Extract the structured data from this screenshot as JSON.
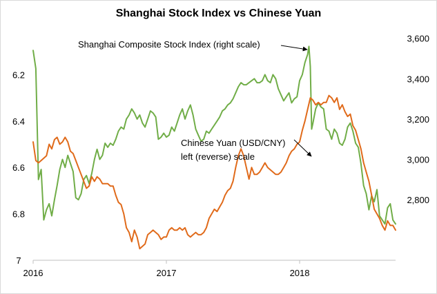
{
  "chart_data": {
    "type": "line",
    "title": "Shanghai Stock Index vs Chinese Yuan",
    "x_tick_labels": [
      "2016",
      "2017",
      "2018"
    ],
    "y_left_tick_labels": [
      "6.2",
      "6.4",
      "6.6",
      "6.8",
      "7"
    ],
    "y_right_tick_labels": [
      "2,800",
      "3,000",
      "3,200",
      "3,400",
      "3,600"
    ],
    "y_left_range": [
      6.0,
      7.0
    ],
    "y_left_reversed": true,
    "y_right_range": [
      2500,
      3650
    ],
    "x_range": [
      2016.0,
      2018.72
    ],
    "grid": false,
    "annotations": [
      {
        "text": "Shanghai Composite Stock Index (right scale)",
        "target": "shanghai"
      },
      {
        "lines": [
          "Chinese Yuan (USD/CNY)",
          "left (reverse) scale"
        ],
        "target": "yuan"
      }
    ],
    "series": [
      {
        "name": "Shanghai Composite Stock Index",
        "axis": "right",
        "color": "#70ad47",
        "points": [
          [
            2016.0,
            3540
          ],
          [
            2016.02,
            3450
          ],
          [
            2016.04,
            2900
          ],
          [
            2016.06,
            2950
          ],
          [
            2016.08,
            2700
          ],
          [
            2016.1,
            2750
          ],
          [
            2016.12,
            2780
          ],
          [
            2016.14,
            2720
          ],
          [
            2016.16,
            2800
          ],
          [
            2016.18,
            2870
          ],
          [
            2016.2,
            2950
          ],
          [
            2016.22,
            3000
          ],
          [
            2016.24,
            2960
          ],
          [
            2016.26,
            3020
          ],
          [
            2016.28,
            2980
          ],
          [
            2016.3,
            2940
          ],
          [
            2016.32,
            2810
          ],
          [
            2016.34,
            2800
          ],
          [
            2016.36,
            2830
          ],
          [
            2016.38,
            2900
          ],
          [
            2016.4,
            2920
          ],
          [
            2016.42,
            2880
          ],
          [
            2016.44,
            2930
          ],
          [
            2016.46,
            3000
          ],
          [
            2016.48,
            3050
          ],
          [
            2016.5,
            3000
          ],
          [
            2016.52,
            3020
          ],
          [
            2016.54,
            3080
          ],
          [
            2016.56,
            3060
          ],
          [
            2016.58,
            3080
          ],
          [
            2016.6,
            3070
          ],
          [
            2016.62,
            3100
          ],
          [
            2016.64,
            3140
          ],
          [
            2016.66,
            3160
          ],
          [
            2016.68,
            3150
          ],
          [
            2016.7,
            3200
          ],
          [
            2016.72,
            3220
          ],
          [
            2016.74,
            3250
          ],
          [
            2016.76,
            3230
          ],
          [
            2016.78,
            3200
          ],
          [
            2016.8,
            3220
          ],
          [
            2016.82,
            3180
          ],
          [
            2016.84,
            3160
          ],
          [
            2016.86,
            3200
          ],
          [
            2016.88,
            3240
          ],
          [
            2016.9,
            3230
          ],
          [
            2016.92,
            3210
          ],
          [
            2016.94,
            3100
          ],
          [
            2016.96,
            3110
          ],
          [
            2016.98,
            3130
          ],
          [
            2017.0,
            3110
          ],
          [
            2017.02,
            3120
          ],
          [
            2017.04,
            3160
          ],
          [
            2017.06,
            3140
          ],
          [
            2017.08,
            3180
          ],
          [
            2017.1,
            3220
          ],
          [
            2017.12,
            3250
          ],
          [
            2017.14,
            3200
          ],
          [
            2017.16,
            3240
          ],
          [
            2017.18,
            3270
          ],
          [
            2017.2,
            3220
          ],
          [
            2017.22,
            3150
          ],
          [
            2017.24,
            3120
          ],
          [
            2017.26,
            3090
          ],
          [
            2017.28,
            3100
          ],
          [
            2017.3,
            3140
          ],
          [
            2017.32,
            3130
          ],
          [
            2017.34,
            3150
          ],
          [
            2017.36,
            3170
          ],
          [
            2017.38,
            3190
          ],
          [
            2017.4,
            3210
          ],
          [
            2017.42,
            3240
          ],
          [
            2017.44,
            3250
          ],
          [
            2017.46,
            3270
          ],
          [
            2017.48,
            3280
          ],
          [
            2017.5,
            3300
          ],
          [
            2017.52,
            3330
          ],
          [
            2017.54,
            3360
          ],
          [
            2017.56,
            3380
          ],
          [
            2017.58,
            3370
          ],
          [
            2017.6,
            3370
          ],
          [
            2017.62,
            3380
          ],
          [
            2017.64,
            3390
          ],
          [
            2017.66,
            3400
          ],
          [
            2017.68,
            3380
          ],
          [
            2017.7,
            3380
          ],
          [
            2017.72,
            3390
          ],
          [
            2017.74,
            3420
          ],
          [
            2017.76,
            3390
          ],
          [
            2017.78,
            3380
          ],
          [
            2017.8,
            3420
          ],
          [
            2017.82,
            3400
          ],
          [
            2017.84,
            3350
          ],
          [
            2017.86,
            3320
          ],
          [
            2017.88,
            3290
          ],
          [
            2017.9,
            3310
          ],
          [
            2017.92,
            3330
          ],
          [
            2017.94,
            3280
          ],
          [
            2017.96,
            3300
          ],
          [
            2017.98,
            3310
          ],
          [
            2018.0,
            3390
          ],
          [
            2018.02,
            3420
          ],
          [
            2018.04,
            3480
          ],
          [
            2018.06,
            3520
          ],
          [
            2018.07,
            3560
          ],
          [
            2018.08,
            3460
          ],
          [
            2018.09,
            3150
          ],
          [
            2018.1,
            3180
          ],
          [
            2018.12,
            3250
          ],
          [
            2018.14,
            3280
          ],
          [
            2018.16,
            3260
          ],
          [
            2018.18,
            3250
          ],
          [
            2018.2,
            3150
          ],
          [
            2018.22,
            3140
          ],
          [
            2018.24,
            3100
          ],
          [
            2018.26,
            3150
          ],
          [
            2018.28,
            3130
          ],
          [
            2018.3,
            3080
          ],
          [
            2018.32,
            3070
          ],
          [
            2018.34,
            3100
          ],
          [
            2018.36,
            3160
          ],
          [
            2018.38,
            3180
          ],
          [
            2018.4,
            3140
          ],
          [
            2018.42,
            3080
          ],
          [
            2018.44,
            3060
          ],
          [
            2018.46,
            2980
          ],
          [
            2018.48,
            2870
          ],
          [
            2018.5,
            2830
          ],
          [
            2018.52,
            2750
          ],
          [
            2018.54,
            2820
          ],
          [
            2018.56,
            2790
          ],
          [
            2018.58,
            2850
          ],
          [
            2018.6,
            2720
          ],
          [
            2018.62,
            2700
          ],
          [
            2018.64,
            2680
          ],
          [
            2018.66,
            2760
          ],
          [
            2018.68,
            2780
          ],
          [
            2018.7,
            2700
          ],
          [
            2018.72,
            2680
          ]
        ]
      },
      {
        "name": "Chinese Yuan (USD/CNY)",
        "axis": "left",
        "color": "#e06a1a",
        "points": [
          [
            2016.0,
            6.49
          ],
          [
            2016.02,
            6.57
          ],
          [
            2016.04,
            6.58
          ],
          [
            2016.06,
            6.57
          ],
          [
            2016.08,
            6.56
          ],
          [
            2016.1,
            6.55
          ],
          [
            2016.12,
            6.5
          ],
          [
            2016.14,
            6.52
          ],
          [
            2016.16,
            6.48
          ],
          [
            2016.18,
            6.47
          ],
          [
            2016.2,
            6.5
          ],
          [
            2016.22,
            6.49
          ],
          [
            2016.24,
            6.47
          ],
          [
            2016.26,
            6.49
          ],
          [
            2016.28,
            6.53
          ],
          [
            2016.3,
            6.54
          ],
          [
            2016.32,
            6.57
          ],
          [
            2016.34,
            6.6
          ],
          [
            2016.36,
            6.63
          ],
          [
            2016.38,
            6.66
          ],
          [
            2016.4,
            6.69
          ],
          [
            2016.42,
            6.68
          ],
          [
            2016.44,
            6.64
          ],
          [
            2016.46,
            6.66
          ],
          [
            2016.48,
            6.64
          ],
          [
            2016.5,
            6.65
          ],
          [
            2016.52,
            6.67
          ],
          [
            2016.54,
            6.67
          ],
          [
            2016.56,
            6.67
          ],
          [
            2016.58,
            6.68
          ],
          [
            2016.6,
            6.68
          ],
          [
            2016.62,
            6.72
          ],
          [
            2016.64,
            6.75
          ],
          [
            2016.66,
            6.76
          ],
          [
            2016.68,
            6.8
          ],
          [
            2016.7,
            6.86
          ],
          [
            2016.72,
            6.88
          ],
          [
            2016.74,
            6.92
          ],
          [
            2016.76,
            6.87
          ],
          [
            2016.78,
            6.9
          ],
          [
            2016.8,
            6.95
          ],
          [
            2016.82,
            6.94
          ],
          [
            2016.84,
            6.93
          ],
          [
            2016.86,
            6.89
          ],
          [
            2016.88,
            6.88
          ],
          [
            2016.9,
            6.87
          ],
          [
            2016.92,
            6.88
          ],
          [
            2016.94,
            6.89
          ],
          [
            2016.96,
            6.91
          ],
          [
            2016.98,
            6.9
          ],
          [
            2017.0,
            6.9
          ],
          [
            2017.02,
            6.87
          ],
          [
            2017.04,
            6.86
          ],
          [
            2017.06,
            6.87
          ],
          [
            2017.08,
            6.87
          ],
          [
            2017.1,
            6.86
          ],
          [
            2017.12,
            6.87
          ],
          [
            2017.14,
            6.86
          ],
          [
            2017.16,
            6.89
          ],
          [
            2017.18,
            6.9
          ],
          [
            2017.2,
            6.89
          ],
          [
            2017.22,
            6.88
          ],
          [
            2017.24,
            6.89
          ],
          [
            2017.26,
            6.89
          ],
          [
            2017.28,
            6.88
          ],
          [
            2017.3,
            6.86
          ],
          [
            2017.32,
            6.82
          ],
          [
            2017.34,
            6.8
          ],
          [
            2017.36,
            6.78
          ],
          [
            2017.38,
            6.79
          ],
          [
            2017.4,
            6.77
          ],
          [
            2017.42,
            6.75
          ],
          [
            2017.44,
            6.72
          ],
          [
            2017.46,
            6.7
          ],
          [
            2017.48,
            6.69
          ],
          [
            2017.5,
            6.66
          ],
          [
            2017.52,
            6.6
          ],
          [
            2017.54,
            6.55
          ],
          [
            2017.56,
            6.52
          ],
          [
            2017.58,
            6.55
          ],
          [
            2017.6,
            6.6
          ],
          [
            2017.62,
            6.65
          ],
          [
            2017.64,
            6.6
          ],
          [
            2017.66,
            6.63
          ],
          [
            2017.68,
            6.63
          ],
          [
            2017.7,
            6.62
          ],
          [
            2017.72,
            6.6
          ],
          [
            2017.74,
            6.58
          ],
          [
            2017.76,
            6.6
          ],
          [
            2017.78,
            6.61
          ],
          [
            2017.8,
            6.62
          ],
          [
            2017.82,
            6.63
          ],
          [
            2017.84,
            6.63
          ],
          [
            2017.86,
            6.62
          ],
          [
            2017.88,
            6.6
          ],
          [
            2017.9,
            6.58
          ],
          [
            2017.92,
            6.55
          ],
          [
            2017.94,
            6.53
          ],
          [
            2017.96,
            6.52
          ],
          [
            2017.98,
            6.5
          ],
          [
            2018.0,
            6.49
          ],
          [
            2018.02,
            6.44
          ],
          [
            2018.04,
            6.4
          ],
          [
            2018.06,
            6.35
          ],
          [
            2018.08,
            6.3
          ],
          [
            2018.1,
            6.31
          ],
          [
            2018.12,
            6.33
          ],
          [
            2018.14,
            6.32
          ],
          [
            2018.16,
            6.33
          ],
          [
            2018.18,
            6.32
          ],
          [
            2018.2,
            6.32
          ],
          [
            2018.22,
            6.29
          ],
          [
            2018.24,
            6.3
          ],
          [
            2018.26,
            6.32
          ],
          [
            2018.28,
            6.3
          ],
          [
            2018.3,
            6.35
          ],
          [
            2018.32,
            6.33
          ],
          [
            2018.34,
            6.36
          ],
          [
            2018.36,
            6.38
          ],
          [
            2018.38,
            6.37
          ],
          [
            2018.4,
            6.42
          ],
          [
            2018.42,
            6.44
          ],
          [
            2018.44,
            6.48
          ],
          [
            2018.46,
            6.52
          ],
          [
            2018.48,
            6.58
          ],
          [
            2018.5,
            6.62
          ],
          [
            2018.52,
            6.66
          ],
          [
            2018.54,
            6.72
          ],
          [
            2018.56,
            6.78
          ],
          [
            2018.58,
            6.8
          ],
          [
            2018.6,
            6.82
          ],
          [
            2018.62,
            6.85
          ],
          [
            2018.64,
            6.87
          ],
          [
            2018.66,
            6.83
          ],
          [
            2018.68,
            6.85
          ],
          [
            2018.7,
            6.85
          ],
          [
            2018.72,
            6.87
          ]
        ]
      }
    ]
  }
}
